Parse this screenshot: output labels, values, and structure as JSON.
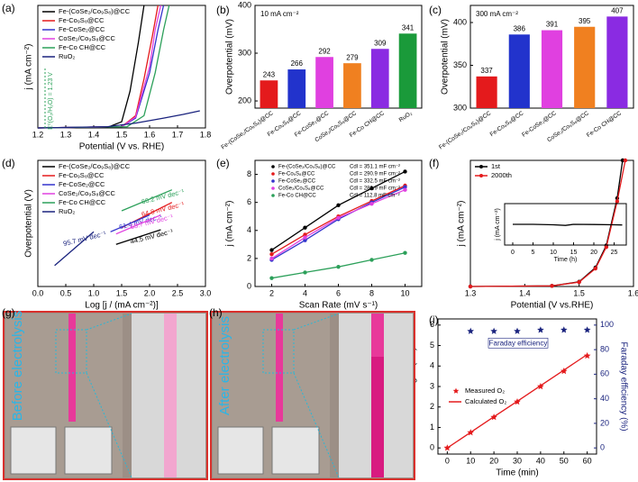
{
  "chart_data": [
    {
      "panel": "(a)",
      "type": "line",
      "xlabel": "Potential (V vs. RHE)",
      "ylabel": "j (mA cm⁻²)",
      "annotation": "E⁰(O₂/H₂O) = 1.23 V",
      "xlim": [
        1.2,
        1.8
      ],
      "xticks": [
        1.2,
        1.3,
        1.4,
        1.5,
        1.6,
        1.7,
        1.8
      ],
      "ylim": [
        0,
        100
      ],
      "series": [
        {
          "name": "Fe-(CoSe₂/Co₉S₈)@CC",
          "color": "#000000",
          "x": [
            1.2,
            1.45,
            1.5,
            1.53,
            1.56,
            1.58
          ],
          "values": [
            0,
            0.5,
            5,
            30,
            70,
            100
          ]
        },
        {
          "name": "Fe-Co₉S₈@CC",
          "color": "#e41a1c",
          "x": [
            1.2,
            1.5,
            1.55,
            1.58,
            1.61,
            1.63
          ],
          "values": [
            0,
            1,
            10,
            40,
            75,
            100
          ]
        },
        {
          "name": "Fe-CoSe₂@CC",
          "color": "#3333cc",
          "x": [
            1.2,
            1.5,
            1.55,
            1.6,
            1.63,
            1.65
          ],
          "values": [
            0,
            1,
            8,
            45,
            80,
            100
          ]
        },
        {
          "name": "CoSe₂/Co₉S₈@CC",
          "color": "#e040e0",
          "x": [
            1.2,
            1.5,
            1.55,
            1.6,
            1.62,
            1.64
          ],
          "values": [
            0,
            1,
            9,
            50,
            80,
            100
          ]
        },
        {
          "name": "Fe-Co CH@CC",
          "color": "#2ca05a",
          "x": [
            1.2,
            1.52,
            1.58,
            1.62,
            1.65,
            1.67
          ],
          "values": [
            0,
            1,
            10,
            45,
            80,
            100
          ]
        },
        {
          "name": "RuO₂",
          "color": "#1a237e",
          "x": [
            1.2,
            1.45,
            1.55,
            1.65,
            1.72,
            1.78
          ],
          "values": [
            0,
            1,
            4,
            8,
            11,
            14
          ]
        }
      ]
    },
    {
      "panel": "(b)",
      "type": "bar",
      "ylabel": "Overpotential (mV)",
      "annotation": "10 mA cm⁻²",
      "categories": [
        "Fe-(CoSe₂/Co₉S₈)@CC",
        "Fe-Co₉S₈@CC",
        "Fe-CoSe₂@CC",
        "CoSe₂/Co₉S₈@CC",
        "Fe-Co CH@CC",
        "RuO₂"
      ],
      "values": [
        243,
        266,
        292,
        279,
        309,
        341
      ],
      "colors": [
        "#e41a1c",
        "#2233cc",
        "#e040e0",
        "#f08020",
        "#8a2be2",
        "#1a9a3a"
      ],
      "ylim": [
        185,
        400
      ],
      "yticks": [
        200,
        300,
        400
      ]
    },
    {
      "panel": "(c)",
      "type": "bar",
      "ylabel": "Overpotential (mV)",
      "annotation": "300 mA cm⁻²",
      "categories": [
        "Fe-(CoSe₂/Co₉S₈)@CC",
        "Fe-Co₉S₈@CC",
        "Fe-CoSe₂@CC",
        "CoSe₂/Co₉S₈@CC",
        "Fe-Co CH@CC"
      ],
      "values": [
        337,
        386,
        391,
        395,
        407
      ],
      "colors": [
        "#e41a1c",
        "#2233cc",
        "#e040e0",
        "#f08020",
        "#8a2be2"
      ],
      "ylim": [
        300,
        420
      ],
      "yticks": [
        300,
        350,
        400
      ]
    },
    {
      "panel": "(d)",
      "type": "line",
      "xlabel": "Log [j / (mA cm⁻²)]",
      "ylabel": "Overpotential (V)",
      "xlim": [
        0,
        3
      ],
      "xticks": [
        {
          "value": 0,
          "label": "0.0"
        },
        0.5,
        {
          "value": 1,
          "label": "1.0"
        },
        1.5,
        {
          "value": 2,
          "label": "2.0"
        },
        2.5,
        {
          "value": 3,
          "label": "3.0"
        }
      ],
      "ylim": [
        0.2,
        0.5
      ],
      "series": [
        {
          "name": "Fe-(CoSe₂/Co₉S₈)@CC",
          "color": "#000000",
          "slope": "44.5 mV dec⁻¹",
          "x": [
            1.4,
            2.2
          ],
          "values": [
            0.3,
            0.335
          ]
        },
        {
          "name": "Fe-Co₉S₈@CC",
          "color": "#e41a1c",
          "slope": "64.8 mV dec⁻¹",
          "x": [
            1.5,
            2.4
          ],
          "values": [
            0.34,
            0.4
          ]
        },
        {
          "name": "Fe-CoSe₂@CC",
          "color": "#3333cc",
          "slope": "61.4 mV dec⁻¹",
          "x": [
            1.3,
            2.0
          ],
          "values": [
            0.33,
            0.37
          ]
        },
        {
          "name": "CoSe₂/Co₉S₈@CC",
          "color": "#e040e0",
          "slope": "63.7 mV dec⁻¹",
          "x": [
            1.4,
            2.2
          ],
          "values": [
            0.325,
            0.37
          ]
        },
        {
          "name": "Fe-Co CH@CC",
          "color": "#2ca05a",
          "slope": "66.2 mV dec⁻¹",
          "x": [
            1.5,
            2.4
          ],
          "values": [
            0.38,
            0.43
          ]
        },
        {
          "name": "RuO₂",
          "color": "#1a237e",
          "slope": "95.7 mV dec⁻¹",
          "x": [
            0.3,
            1.0
          ],
          "values": [
            0.25,
            0.33
          ]
        }
      ]
    },
    {
      "panel": "(e)",
      "type": "scatter",
      "xlabel": "Scan Rate (mV s⁻¹)",
      "ylabel": "j (mA cm⁻²)",
      "xlim": [
        1,
        11
      ],
      "xticks": [
        2,
        4,
        6,
        8,
        10
      ],
      "ylim": [
        0,
        9
      ],
      "yticks": [
        0,
        2,
        4,
        6,
        8
      ],
      "x": [
        2,
        4,
        6,
        8,
        10
      ],
      "series": [
        {
          "name": "Fe-(CoSe₂/Co₉S₈)@CC",
          "cdl": "Cdl = 351.1 mF cm⁻²",
          "color": "#000000",
          "values": [
            2.6,
            4.2,
            5.8,
            7.0,
            8.2
          ]
        },
        {
          "name": "Fe-Co₉S₈@CC",
          "cdl": "Cdl = 290.9 mF cm⁻²",
          "color": "#e41a1c",
          "values": [
            2.3,
            3.7,
            5.0,
            6.1,
            7.2
          ]
        },
        {
          "name": "Fe-CoSe₂@CC",
          "cdl": "Cdl = 332.5 mF cm⁻²",
          "color": "#3333cc",
          "values": [
            1.9,
            3.3,
            4.8,
            6.0,
            7.1
          ]
        },
        {
          "name": "CoSe₂/Co₉S₈@CC",
          "cdl": "Cdl = 286.9 mF cm⁻²",
          "color": "#e040e0",
          "values": [
            2.0,
            3.5,
            4.9,
            5.9,
            6.9
          ]
        },
        {
          "name": "Fe-Co CH@CC",
          "cdl": "Cdl = 112.8 mF cm⁻²",
          "color": "#2ca05a",
          "values": [
            0.6,
            1.0,
            1.4,
            1.9,
            2.4
          ]
        }
      ]
    },
    {
      "panel": "(f)",
      "type": "line",
      "xlabel": "Potential (V vs.RHE)",
      "ylabel": "j (mA cm⁻²)",
      "xlim": [
        1.3,
        1.6
      ],
      "xticks": [
        1.3,
        1.4,
        1.5,
        1.6
      ],
      "ylim": [
        0,
        400
      ],
      "series": [
        {
          "name": "1st",
          "color": "#000000",
          "x": [
            1.3,
            1.45,
            1.5,
            1.53,
            1.55,
            1.57,
            1.58
          ],
          "values": [
            0,
            2,
            15,
            60,
            130,
            280,
            400
          ]
        },
        {
          "name": "2000th",
          "color": "#e41a1c",
          "x": [
            1.3,
            1.45,
            1.5,
            1.53,
            1.55,
            1.57,
            1.585
          ],
          "values": [
            0,
            2,
            14,
            57,
            125,
            270,
            400
          ]
        }
      ]
    },
    {
      "type": "line",
      "xlabel": "Time (h)",
      "ylabel": "j (mA cm⁻²)",
      "xlim": [
        -2,
        28
      ],
      "xticks": [
        0,
        5,
        10,
        15,
        20,
        25
      ],
      "ylim": [
        0,
        20
      ],
      "series": [
        {
          "color": "#000000",
          "x": [
            0,
            5,
            10,
            13,
            15,
            20,
            25,
            27
          ],
          "values": [
            10,
            10,
            9.8,
            9.5,
            10,
            9.9,
            9.8,
            9.7
          ]
        }
      ]
    },
    {
      "panel": "(i)",
      "type": "scatter",
      "xlabel": "Time (min)",
      "ylabel": "Volume of gas (mL)",
      "y2label": "Faraday efficiency (%)",
      "xlim": [
        -4,
        64
      ],
      "xticks": [
        0,
        10,
        20,
        30,
        40,
        50,
        60
      ],
      "ylim": [
        -0.3,
        6.3
      ],
      "yticks": [
        0,
        1,
        2,
        3,
        4,
        5,
        6
      ],
      "y2lim": [
        -5,
        105
      ],
      "y2ticks": [
        0,
        20,
        40,
        60,
        80,
        100
      ],
      "x": [
        0,
        10,
        20,
        30,
        40,
        50,
        60
      ],
      "series": [
        {
          "name": "Measured O₂",
          "color": "#e41a1c",
          "marker": "star",
          "values": [
            0,
            0.75,
            1.5,
            2.25,
            3.0,
            3.75,
            4.5
          ]
        },
        {
          "name": "Calculated O₂",
          "color": "#e41a1c",
          "marker": "line",
          "values": [
            0,
            0.76,
            1.52,
            2.28,
            3.04,
            3.8,
            4.56
          ]
        },
        {
          "name": "Faraday efficiency",
          "color": "#1a237e",
          "marker": "star",
          "axis": "y2",
          "values": [
            null,
            95,
            95,
            95,
            96,
            96,
            96
          ]
        }
      ]
    }
  ],
  "photos": [
    {
      "panel": "(g)",
      "caption": "Before electrolysis"
    },
    {
      "panel": "(h)",
      "caption": "After electrolysis"
    }
  ]
}
